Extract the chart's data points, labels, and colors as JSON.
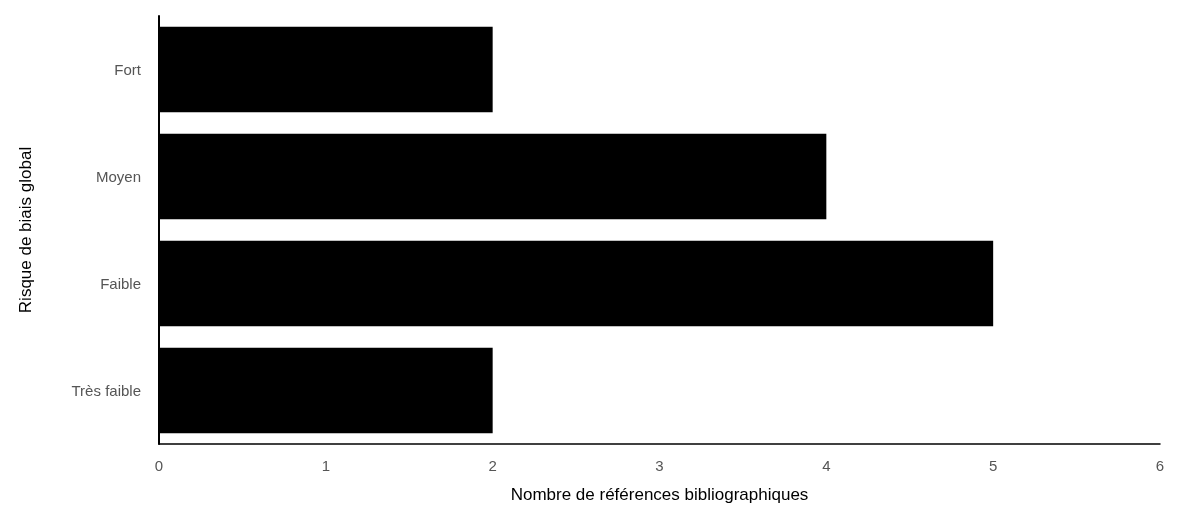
{
  "chart_data": {
    "type": "bar",
    "orientation": "horizontal",
    "categories": [
      "Fort",
      "Moyen",
      "Faible",
      "Très faible"
    ],
    "values": [
      2,
      4,
      5,
      2
    ],
    "color": "#000000",
    "xlim": [
      0,
      6
    ],
    "xticks": [
      0,
      1,
      2,
      3,
      4,
      5,
      6
    ],
    "xlabel": "Nombre de références bibliographiques",
    "ylabel": "Risque de biais global",
    "grid": false
  }
}
